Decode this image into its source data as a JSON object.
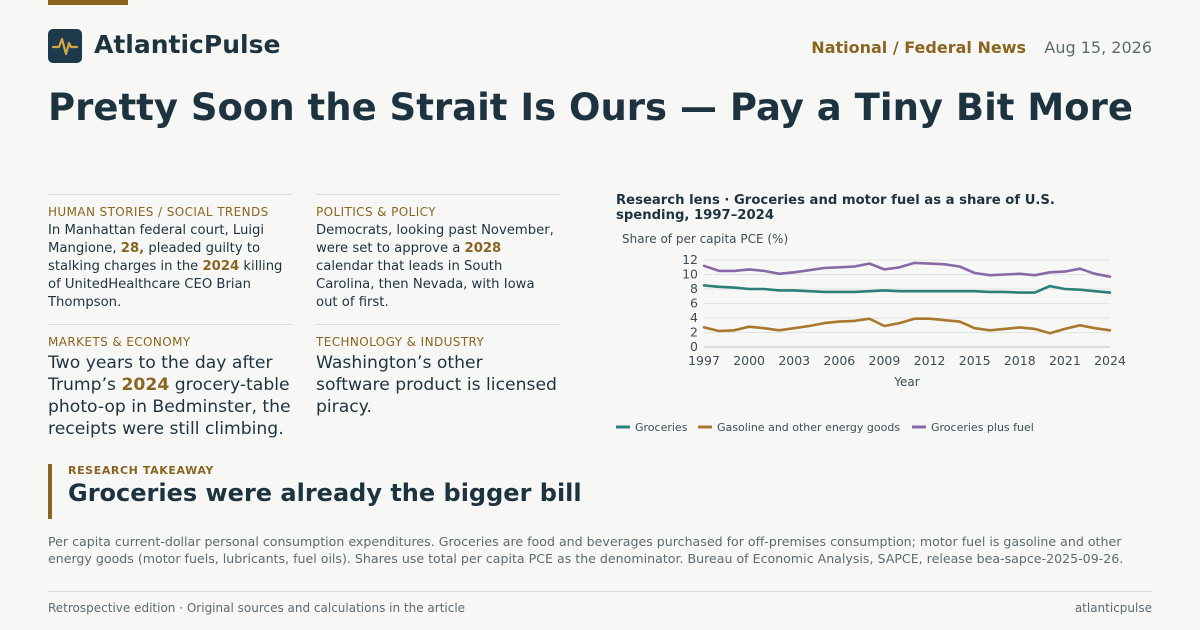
{
  "header": {
    "brand": "AtlanticPulse",
    "logo_icon": "pulse-icon",
    "section": "National / Federal News",
    "date": "Aug 15, 2026"
  },
  "headline": "Pretty Soon the Strait Is Ours — Pay a Tiny Bit More",
  "cards": [
    {
      "kicker": "HUMAN STORIES / SOCIAL TRENDS",
      "parts": [
        {
          "t": "In Manhattan federal court, Luigi Mangione, "
        },
        {
          "t": "28,",
          "hl": true
        },
        {
          "t": " pleaded guilty to stalking charges in the "
        },
        {
          "t": "2024",
          "hl": true
        },
        {
          "t": " killing of UnitedHealthcare CEO Brian Thompson."
        }
      ]
    },
    {
      "kicker": "POLITICS & POLICY",
      "parts": [
        {
          "t": "Democrats, looking past November, were set to approve a "
        },
        {
          "t": "2028",
          "hl": true
        },
        {
          "t": " calendar that leads in South Carolina, then Nevada, with Iowa out of first."
        }
      ]
    },
    {
      "kicker": "MARKETS & ECONOMY",
      "parts": [
        {
          "t": "Two years to the day after Trump’s "
        },
        {
          "t": "2024",
          "hl": true
        },
        {
          "t": " grocery-table photo-op in Bedminster, the receipts were still climbing."
        }
      ]
    },
    {
      "kicker": "TECHNOLOGY & INDUSTRY",
      "parts": [
        {
          "t": "Washington’s other software product is licensed piracy."
        }
      ]
    }
  ],
  "chart_data": {
    "type": "line",
    "title": "Research lens · Groceries and motor fuel as a share of U.S. spending, 1997–2024",
    "ylabel": "Share of per capita PCE (%)",
    "xlabel": "Year",
    "x": [
      1997,
      1998,
      1999,
      2000,
      2001,
      2002,
      2003,
      2004,
      2005,
      2006,
      2007,
      2008,
      2009,
      2010,
      2011,
      2012,
      2013,
      2014,
      2015,
      2016,
      2017,
      2018,
      2019,
      2020,
      2021,
      2022,
      2023,
      2024
    ],
    "xticks": [
      1997,
      2000,
      2003,
      2006,
      2009,
      2012,
      2015,
      2018,
      2021,
      2024
    ],
    "yticks": [
      0,
      2,
      4,
      6,
      8,
      10,
      12
    ],
    "ylim": [
      0,
      12
    ],
    "grid": true,
    "legend_position": "bottom",
    "series": [
      {
        "name": "Groceries",
        "color": "#2a7f78",
        "values": [
          8.5,
          8.3,
          8.2,
          8.0,
          8.0,
          7.8,
          7.8,
          7.7,
          7.6,
          7.6,
          7.6,
          7.7,
          7.8,
          7.7,
          7.7,
          7.7,
          7.7,
          7.7,
          7.7,
          7.6,
          7.6,
          7.5,
          7.5,
          8.4,
          8.0,
          7.9,
          7.7,
          7.5
        ]
      },
      {
        "name": "Gasoline and other energy goods",
        "color": "#a8782e",
        "values": [
          2.7,
          2.2,
          2.3,
          2.8,
          2.6,
          2.3,
          2.6,
          2.9,
          3.3,
          3.5,
          3.6,
          3.9,
          2.9,
          3.3,
          3.9,
          3.9,
          3.7,
          3.5,
          2.6,
          2.3,
          2.5,
          2.7,
          2.5,
          1.9,
          2.5,
          3.0,
          2.6,
          2.3
        ]
      },
      {
        "name": "Groceries plus fuel",
        "color": "#8a67a6",
        "values": [
          11.2,
          10.5,
          10.5,
          10.7,
          10.5,
          10.1,
          10.3,
          10.6,
          10.9,
          11.0,
          11.1,
          11.5,
          10.7,
          11.0,
          11.6,
          11.5,
          11.4,
          11.1,
          10.2,
          9.9,
          10.0,
          10.1,
          9.9,
          10.3,
          10.4,
          10.8,
          10.1,
          9.7
        ]
      }
    ]
  },
  "takeaway": {
    "kicker": "RESEARCH TAKEAWAY",
    "title": "Groceries were already the bigger bill"
  },
  "note": "Per capita current-dollar personal consumption expenditures. Groceries are food and beverages purchased for off-premises consumption; motor fuel is gasoline and other energy goods (motor fuels, lubricants, fuel oils). Shares use total per capita PCE as the denominator. Bureau of Economic Analysis, SAPCE, release bea-sapce-2025-09-26.",
  "footer": {
    "left": "Retrospective edition · Original sources and calculations in the article",
    "right": "atlanticpulse"
  }
}
